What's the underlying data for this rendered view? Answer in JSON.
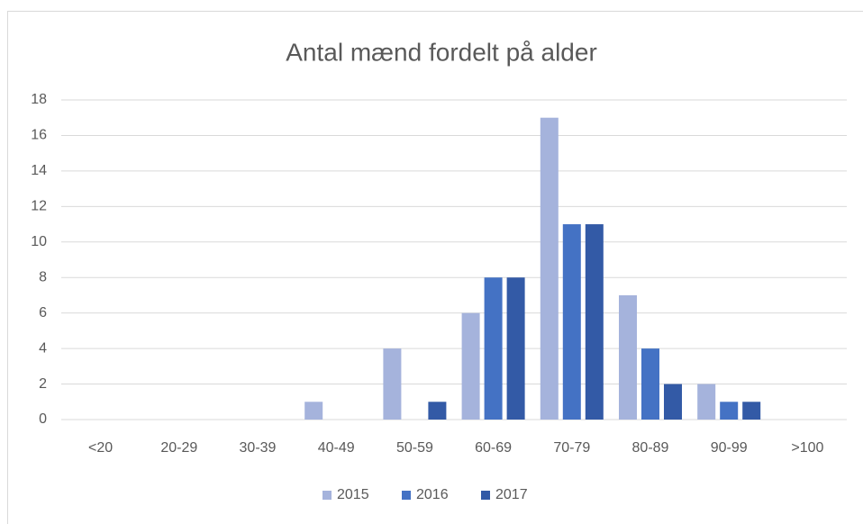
{
  "chart_data": {
    "type": "bar",
    "title": "Antal mænd fordelt på alder",
    "categories": [
      "<20",
      "20-29",
      "30-39",
      "40-49",
      "50-59",
      "60-69",
      "70-79",
      "80-89",
      "90-99",
      ">100"
    ],
    "series": [
      {
        "name": "2015",
        "color": "#a5b3dc",
        "values": [
          0,
          0,
          0,
          1,
          4,
          6,
          17,
          7,
          2,
          0
        ]
      },
      {
        "name": "2016",
        "color": "#4472c4",
        "values": [
          0,
          0,
          0,
          0,
          0,
          8,
          11,
          4,
          1,
          0
        ]
      },
      {
        "name": "2017",
        "color": "#335aa6",
        "values": [
          0,
          0,
          0,
          0,
          1,
          8,
          11,
          2,
          1,
          0
        ]
      }
    ],
    "ylim": [
      0,
      18
    ],
    "yticks": [
      0,
      2,
      4,
      6,
      8,
      10,
      12,
      14,
      16,
      18
    ],
    "grid": true,
    "legend": "bottom"
  }
}
